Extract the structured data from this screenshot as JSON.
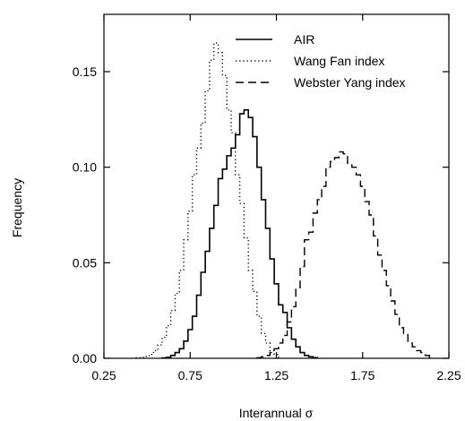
{
  "chart_data": {
    "type": "histogram-step",
    "title": "",
    "xlabel": "Interannual σ",
    "ylabel": "Frequency",
    "xlim": [
      0.25,
      2.25
    ],
    "ylim": [
      0,
      0.18
    ],
    "x_ticks": [
      0.25,
      0.75,
      1.25,
      1.75,
      2.25
    ],
    "x_tick_labels": [
      "0.25",
      "0.75",
      "1.25",
      "1.75",
      "2.25"
    ],
    "y_ticks": [
      0.0,
      0.05,
      0.1,
      0.15
    ],
    "y_tick_labels": [
      "0.00",
      "0.05",
      "0.10",
      "0.15"
    ],
    "grid": false,
    "legend_position": "top",
    "series": [
      {
        "name": "AIR",
        "line_style": "solid",
        "color": "#000000",
        "x": [
          0.6,
          0.625,
          0.65,
          0.675,
          0.7,
          0.725,
          0.75,
          0.775,
          0.8,
          0.825,
          0.85,
          0.875,
          0.9,
          0.925,
          0.95,
          0.975,
          1.0,
          1.025,
          1.05,
          1.075,
          1.1,
          1.125,
          1.15,
          1.175,
          1.2,
          1.225,
          1.25,
          1.275,
          1.3,
          1.325,
          1.35,
          1.375,
          1.4,
          1.425,
          1.45,
          1.475
        ],
        "y": [
          0.0002,
          0.0005,
          0.0015,
          0.003,
          0.005,
          0.009,
          0.015,
          0.022,
          0.033,
          0.045,
          0.056,
          0.068,
          0.08,
          0.094,
          0.099,
          0.106,
          0.11,
          0.117,
          0.128,
          0.13,
          0.126,
          0.116,
          0.1,
          0.083,
          0.068,
          0.052,
          0.039,
          0.028,
          0.024,
          0.016,
          0.01,
          0.006,
          0.003,
          0.0015,
          0.0008,
          0.0003
        ]
      },
      {
        "name": "Wang Fan index",
        "line_style": "dotted",
        "color": "#000000",
        "x": [
          0.45,
          0.475,
          0.5,
          0.525,
          0.55,
          0.575,
          0.6,
          0.625,
          0.65,
          0.675,
          0.7,
          0.725,
          0.75,
          0.775,
          0.8,
          0.825,
          0.85,
          0.875,
          0.9,
          0.925,
          0.95,
          0.975,
          1.0,
          1.025,
          1.05,
          1.075,
          1.1,
          1.125,
          1.15,
          1.175,
          1.2,
          1.225,
          1.25
        ],
        "y": [
          0.0003,
          0.0005,
          0.001,
          0.002,
          0.004,
          0.007,
          0.011,
          0.017,
          0.025,
          0.034,
          0.046,
          0.062,
          0.077,
          0.096,
          0.11,
          0.123,
          0.14,
          0.156,
          0.165,
          0.16,
          0.148,
          0.13,
          0.118,
          0.096,
          0.081,
          0.063,
          0.046,
          0.035,
          0.022,
          0.013,
          0.008,
          0.004,
          0.002
        ]
      },
      {
        "name": "Webster Yang index",
        "line_style": "dashed",
        "color": "#000000",
        "x": [
          1.15,
          1.175,
          1.2,
          1.225,
          1.25,
          1.275,
          1.3,
          1.325,
          1.35,
          1.375,
          1.4,
          1.425,
          1.45,
          1.475,
          1.5,
          1.525,
          1.55,
          1.575,
          1.6,
          1.625,
          1.65,
          1.675,
          1.7,
          1.725,
          1.75,
          1.775,
          1.8,
          1.825,
          1.85,
          1.875,
          1.9,
          1.925,
          1.95,
          1.975,
          2.0,
          2.025,
          2.05,
          2.075,
          2.1,
          2.125,
          2.15
        ],
        "y": [
          0.0003,
          0.0008,
          0.0015,
          0.003,
          0.005,
          0.008,
          0.012,
          0.019,
          0.027,
          0.037,
          0.048,
          0.062,
          0.066,
          0.076,
          0.083,
          0.09,
          0.1,
          0.103,
          0.105,
          0.108,
          0.107,
          0.102,
          0.1,
          0.096,
          0.09,
          0.082,
          0.075,
          0.064,
          0.054,
          0.046,
          0.038,
          0.03,
          0.023,
          0.016,
          0.013,
          0.008,
          0.006,
          0.004,
          0.003,
          0.0015,
          0.0005
        ]
      }
    ]
  }
}
